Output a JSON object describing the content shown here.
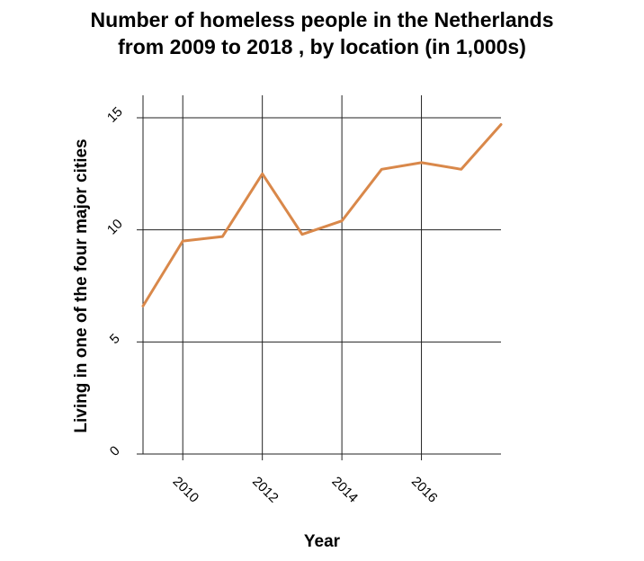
{
  "chart_data": {
    "type": "line",
    "title_lines": [
      "Number of homeless people in the Netherlands",
      "from 2009 to 2018 , by location (in 1,000s)"
    ],
    "xlabel": "Year",
    "ylabel": "Living in one of the four major cities",
    "xlim": [
      2009,
      2018
    ],
    "ylim": [
      0,
      15
    ],
    "x_ticks": [
      2010,
      2012,
      2014,
      2016
    ],
    "y_ticks": [
      0,
      5,
      10,
      15
    ],
    "grid": true,
    "series": [
      {
        "color": "#d9884a",
        "x": [
          2009,
          2010,
          2011,
          2012,
          2013,
          2014,
          2015,
          2016,
          2017,
          2018
        ],
        "values": [
          6.6,
          9.5,
          9.7,
          12.5,
          9.8,
          10.4,
          12.7,
          13.0,
          12.7,
          14.7
        ]
      }
    ]
  }
}
